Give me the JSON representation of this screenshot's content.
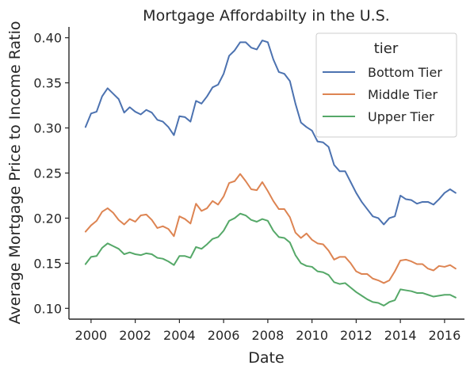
{
  "chart_data": {
    "type": "line",
    "title": "Mortgage Affordabilty in the U.S.",
    "xlabel": "Date",
    "ylabel": "Average Mortgage Price to Income Ratio",
    "xlim": [
      1999.0,
      2016.9
    ],
    "ylim": [
      0.088,
      0.412
    ],
    "xticks": [
      2000,
      2002,
      2004,
      2006,
      2008,
      2010,
      2012,
      2014,
      2016
    ],
    "xtick_labels": [
      "2000",
      "2002",
      "2004",
      "2006",
      "2008",
      "2010",
      "2012",
      "2014",
      "2016"
    ],
    "yticks": [
      0.1,
      0.15,
      0.2,
      0.25,
      0.3,
      0.35,
      0.4
    ],
    "ytick_labels": [
      "0.10",
      "0.15",
      "0.20",
      "0.25",
      "0.30",
      "0.35",
      "0.40"
    ],
    "grid": false,
    "legend": {
      "title": "tier",
      "position": "top-right"
    },
    "series": [
      {
        "name": "Bottom Tier",
        "color": "#4c72b0",
        "points": [
          [
            1999.75,
            0.301
          ],
          [
            2000.0,
            0.316
          ],
          [
            2000.25,
            0.318
          ],
          [
            2000.5,
            0.335
          ],
          [
            2000.75,
            0.344
          ],
          [
            2001.0,
            0.338
          ],
          [
            2001.25,
            0.332
          ],
          [
            2001.5,
            0.317
          ],
          [
            2001.75,
            0.323
          ],
          [
            2002.0,
            0.318
          ],
          [
            2002.25,
            0.315
          ],
          [
            2002.5,
            0.32
          ],
          [
            2002.75,
            0.317
          ],
          [
            2003.0,
            0.309
          ],
          [
            2003.25,
            0.307
          ],
          [
            2003.5,
            0.301
          ],
          [
            2003.75,
            0.292
          ],
          [
            2004.0,
            0.313
          ],
          [
            2004.25,
            0.312
          ],
          [
            2004.5,
            0.307
          ],
          [
            2004.75,
            0.33
          ],
          [
            2005.0,
            0.327
          ],
          [
            2005.25,
            0.335
          ],
          [
            2005.5,
            0.345
          ],
          [
            2005.75,
            0.348
          ],
          [
            2006.0,
            0.36
          ],
          [
            2006.25,
            0.38
          ],
          [
            2006.5,
            0.386
          ],
          [
            2006.75,
            0.395
          ],
          [
            2007.0,
            0.395
          ],
          [
            2007.25,
            0.389
          ],
          [
            2007.5,
            0.387
          ],
          [
            2007.75,
            0.397
          ],
          [
            2008.0,
            0.395
          ],
          [
            2008.25,
            0.376
          ],
          [
            2008.5,
            0.362
          ],
          [
            2008.75,
            0.36
          ],
          [
            2009.0,
            0.352
          ],
          [
            2009.25,
            0.327
          ],
          [
            2009.5,
            0.306
          ],
          [
            2009.75,
            0.301
          ],
          [
            2010.0,
            0.297
          ],
          [
            2010.25,
            0.285
          ],
          [
            2010.5,
            0.284
          ],
          [
            2010.75,
            0.279
          ],
          [
            2011.0,
            0.259
          ],
          [
            2011.25,
            0.252
          ],
          [
            2011.5,
            0.252
          ],
          [
            2011.75,
            0.24
          ],
          [
            2012.0,
            0.228
          ],
          [
            2012.25,
            0.218
          ],
          [
            2012.5,
            0.21
          ],
          [
            2012.75,
            0.202
          ],
          [
            2013.0,
            0.2
          ],
          [
            2013.25,
            0.193
          ],
          [
            2013.5,
            0.2
          ],
          [
            2013.75,
            0.202
          ],
          [
            2014.0,
            0.225
          ],
          [
            2014.25,
            0.221
          ],
          [
            2014.5,
            0.22
          ],
          [
            2014.75,
            0.216
          ],
          [
            2015.0,
            0.218
          ],
          [
            2015.25,
            0.218
          ],
          [
            2015.5,
            0.215
          ],
          [
            2015.75,
            0.221
          ],
          [
            2016.0,
            0.228
          ],
          [
            2016.25,
            0.232
          ],
          [
            2016.5,
            0.228
          ]
        ]
      },
      {
        "name": "Middle Tier",
        "color": "#dd8452",
        "points": [
          [
            1999.75,
            0.185
          ],
          [
            2000.0,
            0.192
          ],
          [
            2000.25,
            0.197
          ],
          [
            2000.5,
            0.207
          ],
          [
            2000.75,
            0.211
          ],
          [
            2001.0,
            0.206
          ],
          [
            2001.25,
            0.198
          ],
          [
            2001.5,
            0.193
          ],
          [
            2001.75,
            0.199
          ],
          [
            2002.0,
            0.196
          ],
          [
            2002.25,
            0.203
          ],
          [
            2002.5,
            0.204
          ],
          [
            2002.75,
            0.198
          ],
          [
            2003.0,
            0.189
          ],
          [
            2003.25,
            0.191
          ],
          [
            2003.5,
            0.188
          ],
          [
            2003.75,
            0.18
          ],
          [
            2004.0,
            0.202
          ],
          [
            2004.25,
            0.199
          ],
          [
            2004.5,
            0.194
          ],
          [
            2004.75,
            0.216
          ],
          [
            2005.0,
            0.208
          ],
          [
            2005.25,
            0.211
          ],
          [
            2005.5,
            0.219
          ],
          [
            2005.75,
            0.215
          ],
          [
            2006.0,
            0.224
          ],
          [
            2006.25,
            0.239
          ],
          [
            2006.5,
            0.241
          ],
          [
            2006.75,
            0.249
          ],
          [
            2007.0,
            0.241
          ],
          [
            2007.25,
            0.232
          ],
          [
            2007.5,
            0.231
          ],
          [
            2007.75,
            0.24
          ],
          [
            2008.0,
            0.23
          ],
          [
            2008.25,
            0.219
          ],
          [
            2008.5,
            0.21
          ],
          [
            2008.75,
            0.21
          ],
          [
            2009.0,
            0.201
          ],
          [
            2009.25,
            0.184
          ],
          [
            2009.5,
            0.178
          ],
          [
            2009.75,
            0.183
          ],
          [
            2010.0,
            0.176
          ],
          [
            2010.25,
            0.172
          ],
          [
            2010.5,
            0.171
          ],
          [
            2010.75,
            0.164
          ],
          [
            2011.0,
            0.154
          ],
          [
            2011.25,
            0.157
          ],
          [
            2011.5,
            0.157
          ],
          [
            2011.75,
            0.15
          ],
          [
            2012.0,
            0.141
          ],
          [
            2012.25,
            0.138
          ],
          [
            2012.5,
            0.138
          ],
          [
            2012.75,
            0.133
          ],
          [
            2013.0,
            0.131
          ],
          [
            2013.25,
            0.128
          ],
          [
            2013.5,
            0.131
          ],
          [
            2013.75,
            0.141
          ],
          [
            2014.0,
            0.153
          ],
          [
            2014.25,
            0.154
          ],
          [
            2014.5,
            0.152
          ],
          [
            2014.75,
            0.149
          ],
          [
            2015.0,
            0.149
          ],
          [
            2015.25,
            0.144
          ],
          [
            2015.5,
            0.142
          ],
          [
            2015.75,
            0.147
          ],
          [
            2016.0,
            0.146
          ],
          [
            2016.25,
            0.148
          ],
          [
            2016.5,
            0.144
          ]
        ]
      },
      {
        "name": "Upper Tier",
        "color": "#55a868",
        "points": [
          [
            1999.75,
            0.149
          ],
          [
            2000.0,
            0.157
          ],
          [
            2000.25,
            0.158
          ],
          [
            2000.5,
            0.167
          ],
          [
            2000.75,
            0.172
          ],
          [
            2001.0,
            0.169
          ],
          [
            2001.25,
            0.166
          ],
          [
            2001.5,
            0.16
          ],
          [
            2001.75,
            0.162
          ],
          [
            2002.0,
            0.16
          ],
          [
            2002.25,
            0.159
          ],
          [
            2002.5,
            0.161
          ],
          [
            2002.75,
            0.16
          ],
          [
            2003.0,
            0.156
          ],
          [
            2003.25,
            0.155
          ],
          [
            2003.5,
            0.152
          ],
          [
            2003.75,
            0.148
          ],
          [
            2004.0,
            0.158
          ],
          [
            2004.25,
            0.158
          ],
          [
            2004.5,
            0.156
          ],
          [
            2004.75,
            0.168
          ],
          [
            2005.0,
            0.166
          ],
          [
            2005.25,
            0.171
          ],
          [
            2005.5,
            0.177
          ],
          [
            2005.75,
            0.179
          ],
          [
            2006.0,
            0.186
          ],
          [
            2006.25,
            0.197
          ],
          [
            2006.5,
            0.2
          ],
          [
            2006.75,
            0.205
          ],
          [
            2007.0,
            0.203
          ],
          [
            2007.25,
            0.198
          ],
          [
            2007.5,
            0.196
          ],
          [
            2007.75,
            0.199
          ],
          [
            2008.0,
            0.197
          ],
          [
            2008.25,
            0.186
          ],
          [
            2008.5,
            0.179
          ],
          [
            2008.75,
            0.178
          ],
          [
            2009.0,
            0.173
          ],
          [
            2009.25,
            0.159
          ],
          [
            2009.5,
            0.15
          ],
          [
            2009.75,
            0.147
          ],
          [
            2010.0,
            0.146
          ],
          [
            2010.25,
            0.141
          ],
          [
            2010.5,
            0.14
          ],
          [
            2010.75,
            0.137
          ],
          [
            2011.0,
            0.129
          ],
          [
            2011.25,
            0.127
          ],
          [
            2011.5,
            0.128
          ],
          [
            2011.75,
            0.123
          ],
          [
            2012.0,
            0.118
          ],
          [
            2012.25,
            0.114
          ],
          [
            2012.5,
            0.11
          ],
          [
            2012.75,
            0.107
          ],
          [
            2013.0,
            0.106
          ],
          [
            2013.25,
            0.103
          ],
          [
            2013.5,
            0.107
          ],
          [
            2013.75,
            0.109
          ],
          [
            2014.0,
            0.121
          ],
          [
            2014.25,
            0.12
          ],
          [
            2014.5,
            0.119
          ],
          [
            2014.75,
            0.117
          ],
          [
            2015.0,
            0.117
          ],
          [
            2015.25,
            0.115
          ],
          [
            2015.5,
            0.113
          ],
          [
            2015.75,
            0.114
          ],
          [
            2016.0,
            0.115
          ],
          [
            2016.25,
            0.115
          ],
          [
            2016.5,
            0.112
          ]
        ]
      }
    ]
  }
}
